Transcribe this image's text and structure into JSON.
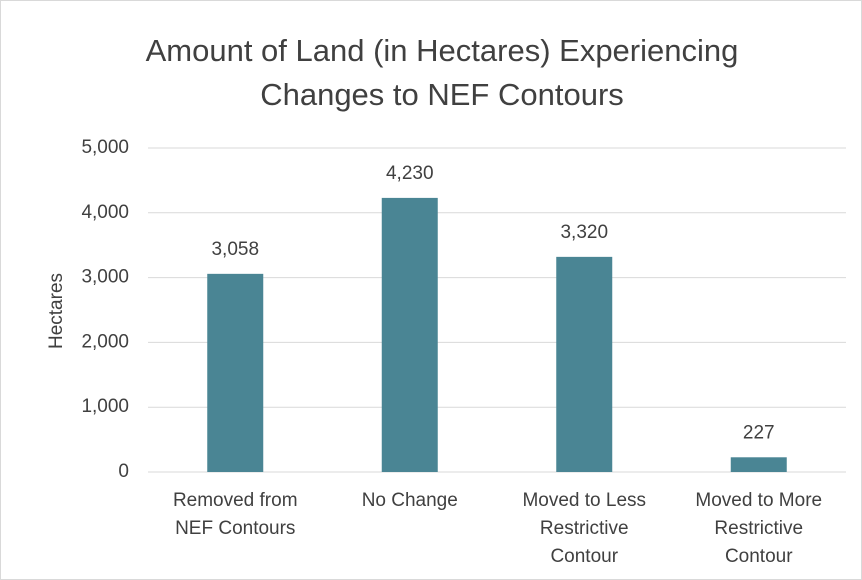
{
  "chart_data": {
    "type": "bar",
    "title": "Amount of Land (in Hectares) Experiencing Changes to NEF Contours",
    "y_label": "Hectares",
    "categories": [
      "Removed from NEF Contours",
      "No Change",
      "Moved to Less Restrictive Contour",
      "Moved to More Restrictive Contour"
    ],
    "values": [
      3058,
      4230,
      3320,
      227
    ],
    "value_labels": [
      "3,058",
      "4,230",
      "3,320",
      "227"
    ],
    "color": "#4a8594",
    "ylim": [
      0,
      5000
    ],
    "yticks": [
      0,
      {
        "value": 1000,
        "label": "1,000"
      },
      {
        "value": 2000,
        "label": "2,000"
      },
      {
        "value": 3000,
        "label": "3,000"
      },
      {
        "value": 4000,
        "label": "4,000"
      },
      {
        "value": 5000,
        "label": "5,000"
      }
    ],
    "grid": true
  }
}
